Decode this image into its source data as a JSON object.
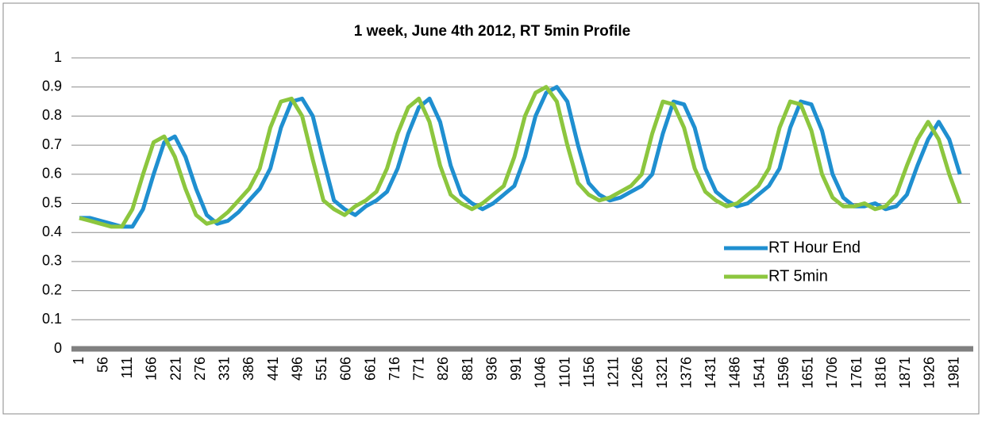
{
  "chart_data": {
    "type": "line",
    "title": "1 week, June 4th 2012, RT 5min Profile",
    "x": [
      1,
      25,
      49,
      73,
      97,
      121,
      145,
      169,
      193,
      217,
      241,
      265,
      289,
      313,
      337,
      361,
      385,
      409,
      433,
      457,
      481,
      505,
      529,
      553,
      577,
      601,
      625,
      649,
      673,
      697,
      721,
      745,
      769,
      793,
      817,
      841,
      865,
      889,
      913,
      937,
      961,
      985,
      1009,
      1033,
      1057,
      1081,
      1105,
      1129,
      1153,
      1177,
      1201,
      1225,
      1249,
      1273,
      1297,
      1321,
      1345,
      1369,
      1393,
      1417,
      1441,
      1465,
      1489,
      1513,
      1537,
      1561,
      1585,
      1609,
      1633,
      1657,
      1681,
      1705,
      1729,
      1753,
      1777,
      1801,
      1825,
      1849,
      1873,
      1897,
      1921,
      1945,
      1969,
      1993
    ],
    "series": [
      {
        "name": "RT Hour End",
        "color": "#1f8fd0",
        "values": [
          0.45,
          0.45,
          0.44,
          0.43,
          0.42,
          0.42,
          0.48,
          0.6,
          0.71,
          0.73,
          0.66,
          0.55,
          0.46,
          0.43,
          0.44,
          0.47,
          0.51,
          0.55,
          0.62,
          0.76,
          0.85,
          0.86,
          0.8,
          0.65,
          0.51,
          0.48,
          0.46,
          0.49,
          0.51,
          0.54,
          0.62,
          0.74,
          0.83,
          0.86,
          0.78,
          0.63,
          0.53,
          0.5,
          0.48,
          0.5,
          0.53,
          0.56,
          0.66,
          0.8,
          0.88,
          0.9,
          0.85,
          0.7,
          0.57,
          0.53,
          0.51,
          0.52,
          0.54,
          0.56,
          0.6,
          0.74,
          0.85,
          0.84,
          0.76,
          0.62,
          0.54,
          0.51,
          0.49,
          0.5,
          0.53,
          0.56,
          0.62,
          0.76,
          0.85,
          0.84,
          0.75,
          0.6,
          0.52,
          0.49,
          0.49,
          0.5,
          0.48,
          0.49,
          0.53,
          0.63,
          0.72,
          0.78,
          0.72,
          0.6
        ]
      },
      {
        "name": "RT 5min",
        "color": "#8cc63e",
        "values": [
          0.45,
          0.44,
          0.43,
          0.42,
          0.42,
          0.48,
          0.6,
          0.71,
          0.73,
          0.66,
          0.55,
          0.46,
          0.43,
          0.44,
          0.47,
          0.51,
          0.55,
          0.62,
          0.76,
          0.85,
          0.86,
          0.8,
          0.65,
          0.51,
          0.48,
          0.46,
          0.49,
          0.51,
          0.54,
          0.62,
          0.74,
          0.83,
          0.86,
          0.78,
          0.63,
          0.53,
          0.5,
          0.48,
          0.5,
          0.53,
          0.56,
          0.66,
          0.8,
          0.88,
          0.9,
          0.85,
          0.7,
          0.57,
          0.53,
          0.51,
          0.52,
          0.54,
          0.56,
          0.6,
          0.74,
          0.85,
          0.84,
          0.76,
          0.62,
          0.54,
          0.51,
          0.49,
          0.5,
          0.53,
          0.56,
          0.62,
          0.76,
          0.85,
          0.84,
          0.75,
          0.6,
          0.52,
          0.49,
          0.49,
          0.5,
          0.48,
          0.49,
          0.53,
          0.63,
          0.72,
          0.78,
          0.72,
          0.6,
          0.5
        ]
      }
    ],
    "xlim": [
      1,
      2016
    ],
    "xticks": [
      1,
      56,
      111,
      166,
      221,
      276,
      331,
      386,
      441,
      496,
      551,
      606,
      661,
      716,
      771,
      826,
      881,
      936,
      991,
      1046,
      1101,
      1156,
      1211,
      1266,
      1321,
      1376,
      1431,
      1486,
      1541,
      1596,
      1651,
      1706,
      1761,
      1816,
      1871,
      1926,
      1981
    ],
    "ylim": [
      0,
      1
    ],
    "yticks": [
      0,
      0.1,
      0.2,
      0.3,
      0.4,
      0.5,
      0.6,
      0.7,
      0.8,
      0.9,
      1
    ],
    "grid": true,
    "legend": "right"
  }
}
